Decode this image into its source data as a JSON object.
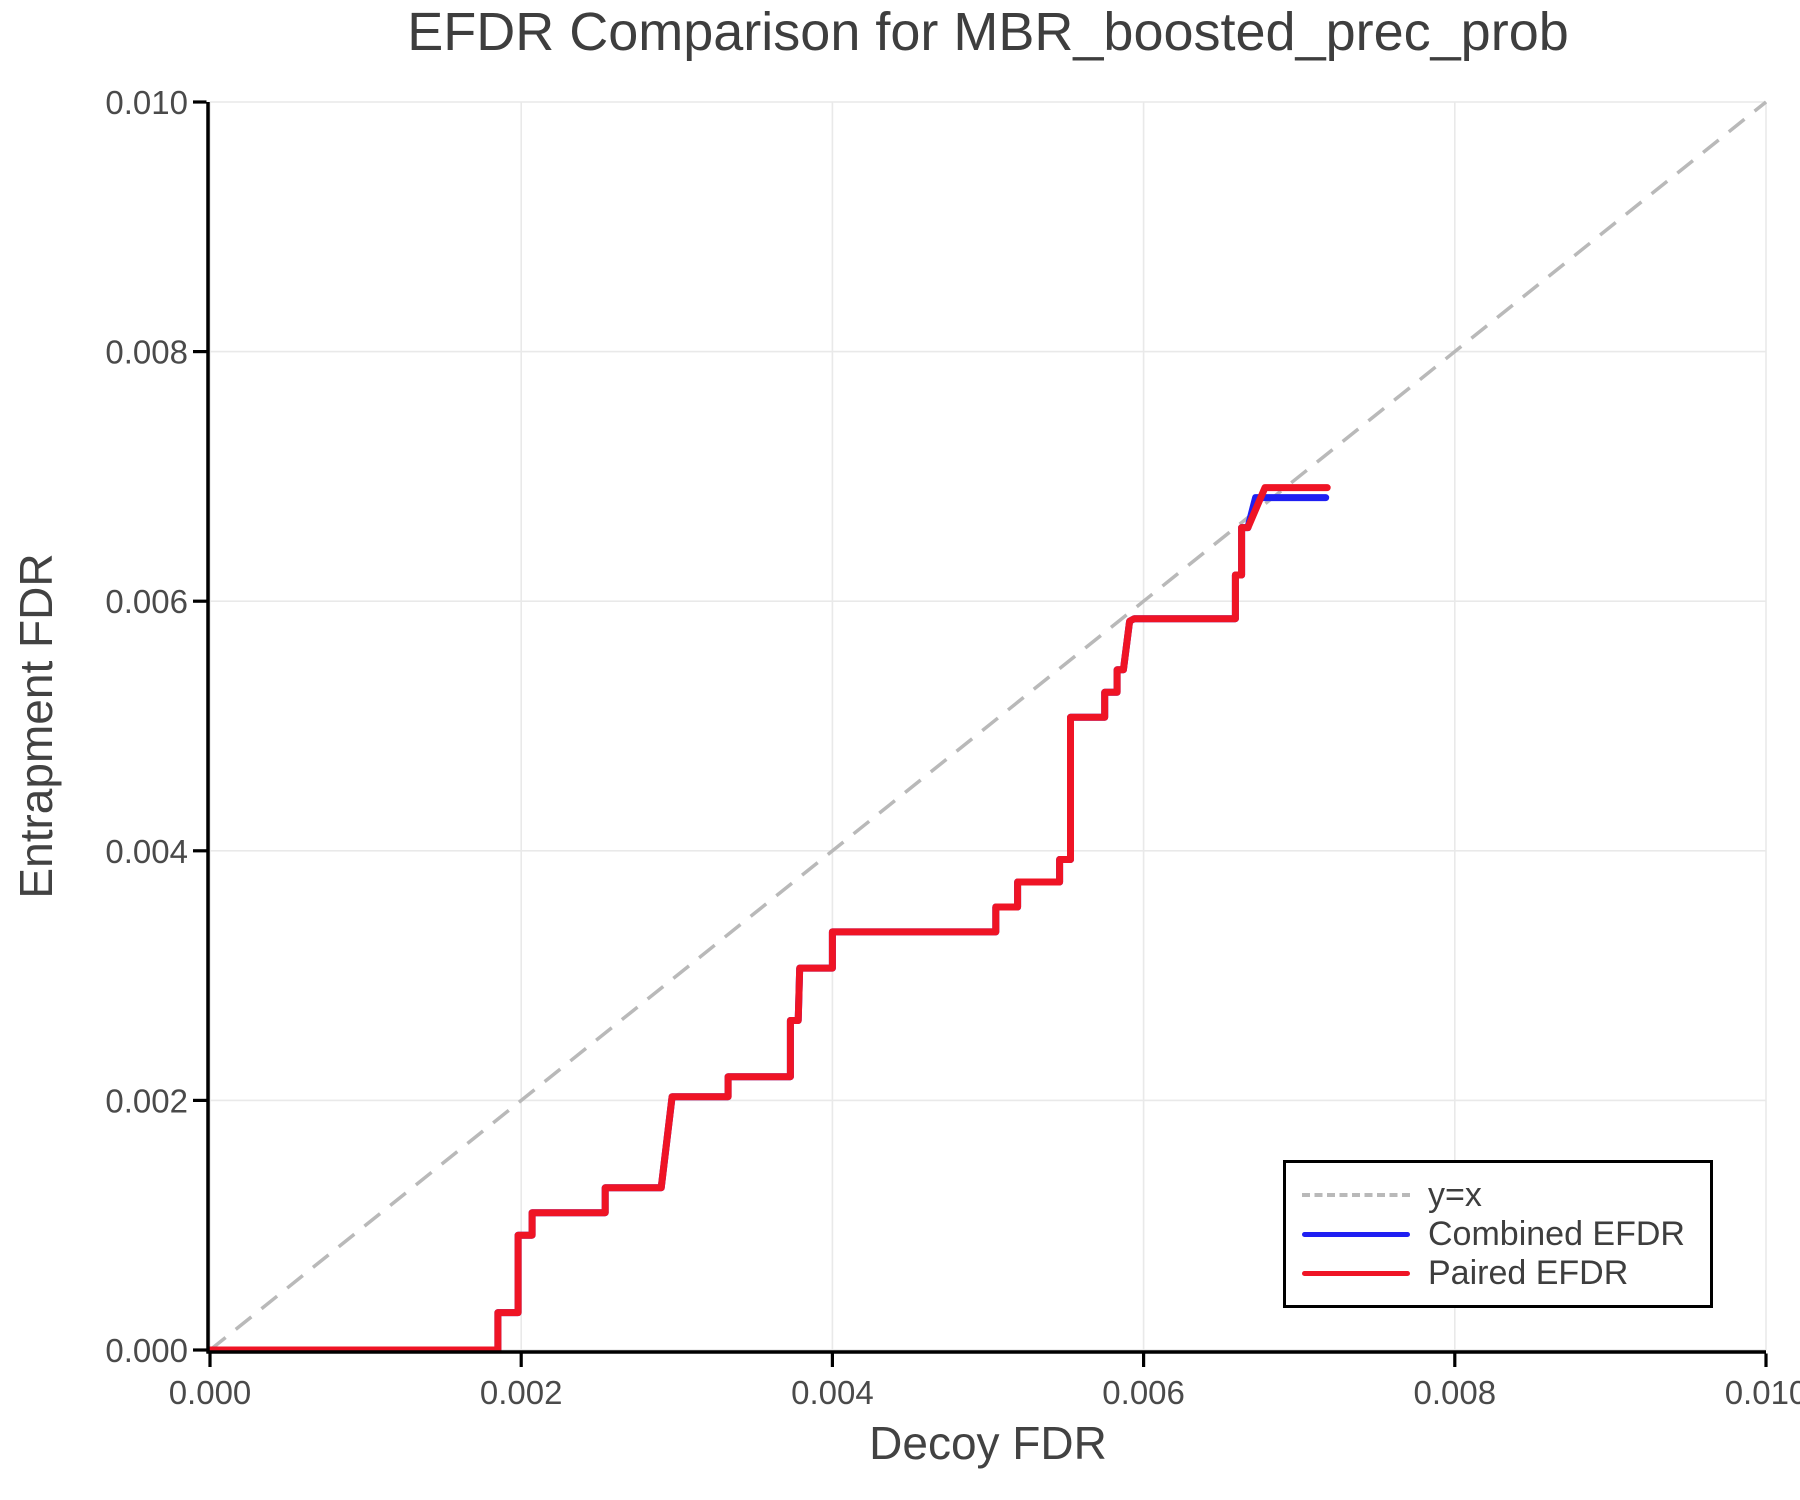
{
  "chart_data": {
    "type": "line",
    "title": "EFDR Comparison for MBR_boosted_prec_prob",
    "xlabel": "Decoy FDR",
    "ylabel": "Entrapment FDR",
    "xlim": [
      0.0,
      0.01
    ],
    "ylim": [
      0.0,
      0.01
    ],
    "grid": true,
    "legend_position": "lower right",
    "xticks": {
      "values": [
        0.0,
        0.002,
        0.004,
        0.006,
        0.008,
        0.01
      ],
      "labels": [
        "0.000",
        "0.002",
        "0.004",
        "0.006",
        "0.008",
        "0.010"
      ]
    },
    "yticks": {
      "values": [
        0.0,
        0.002,
        0.004,
        0.006,
        0.008,
        0.01
      ],
      "labels": [
        "0.000",
        "0.002",
        "0.004",
        "0.006",
        "0.008",
        "0.010"
      ]
    },
    "style": {
      "background": "#ffffff",
      "grid_color": "#e9e9e9",
      "spine_color": "#000000",
      "tick_color": "#000000",
      "title_color": "#3e3e3e",
      "axis_label_color": "#424242",
      "tick_label_color": "#4a4a4a",
      "legend_text_color": "#3e3e3e"
    },
    "series": [
      {
        "name": "y=x",
        "color": "#b9b9b9",
        "style": "dashed",
        "width": 3.5,
        "points": [
          [
            0.0,
            0.0
          ],
          [
            0.01,
            0.01
          ]
        ]
      },
      {
        "name": "Combined EFDR",
        "color": "#1f1ff2",
        "style": "solid",
        "width": 7,
        "points": [
          [
            0.0,
            0.0
          ],
          [
            0.00185,
            0.0
          ],
          [
            0.00185,
            0.0003
          ],
          [
            0.00198,
            0.0003
          ],
          [
            0.00198,
            0.00092
          ],
          [
            0.00207,
            0.00092
          ],
          [
            0.00207,
            0.0011
          ],
          [
            0.00254,
            0.0011
          ],
          [
            0.00254,
            0.0013
          ],
          [
            0.0029,
            0.0013
          ],
          [
            0.00297,
            0.00203
          ],
          [
            0.00333,
            0.00203
          ],
          [
            0.00333,
            0.00219
          ],
          [
            0.00373,
            0.00219
          ],
          [
            0.00373,
            0.00264
          ],
          [
            0.00378,
            0.00264
          ],
          [
            0.00379,
            0.00306
          ],
          [
            0.004,
            0.00306
          ],
          [
            0.004,
            0.00335
          ],
          [
            0.00505,
            0.00335
          ],
          [
            0.00505,
            0.00355
          ],
          [
            0.00519,
            0.00355
          ],
          [
            0.00519,
            0.00375
          ],
          [
            0.00546,
            0.00375
          ],
          [
            0.00546,
            0.00393
          ],
          [
            0.00553,
            0.00393
          ],
          [
            0.00553,
            0.00507
          ],
          [
            0.00575,
            0.00507
          ],
          [
            0.00575,
            0.00527
          ],
          [
            0.00583,
            0.00527
          ],
          [
            0.00583,
            0.00545
          ],
          [
            0.00587,
            0.00545
          ],
          [
            0.00591,
            0.00584
          ],
          [
            0.00594,
            0.00586
          ],
          [
            0.00659,
            0.00586
          ],
          [
            0.00659,
            0.00621
          ],
          [
            0.00663,
            0.00621
          ],
          [
            0.00663,
            0.00659
          ],
          [
            0.00667,
            0.00659
          ],
          [
            0.00672,
            0.00683
          ],
          [
            0.00717,
            0.00683
          ]
        ]
      },
      {
        "name": "Paired EFDR",
        "color": "#ef1425",
        "style": "solid",
        "width": 7,
        "points": [
          [
            0.0,
            0.0
          ],
          [
            0.00185,
            0.0
          ],
          [
            0.00185,
            0.0003
          ],
          [
            0.00198,
            0.0003
          ],
          [
            0.00198,
            0.00092
          ],
          [
            0.00207,
            0.00092
          ],
          [
            0.00207,
            0.0011
          ],
          [
            0.00254,
            0.0011
          ],
          [
            0.00254,
            0.0013
          ],
          [
            0.0029,
            0.0013
          ],
          [
            0.00297,
            0.00203
          ],
          [
            0.00333,
            0.00203
          ],
          [
            0.00333,
            0.00219
          ],
          [
            0.00373,
            0.00219
          ],
          [
            0.00373,
            0.00264
          ],
          [
            0.00378,
            0.00264
          ],
          [
            0.00379,
            0.00306
          ],
          [
            0.004,
            0.00306
          ],
          [
            0.004,
            0.00335
          ],
          [
            0.00505,
            0.00335
          ],
          [
            0.00505,
            0.00355
          ],
          [
            0.00519,
            0.00355
          ],
          [
            0.00519,
            0.00375
          ],
          [
            0.00546,
            0.00375
          ],
          [
            0.00546,
            0.00393
          ],
          [
            0.00553,
            0.00393
          ],
          [
            0.00553,
            0.00507
          ],
          [
            0.00575,
            0.00507
          ],
          [
            0.00575,
            0.00527
          ],
          [
            0.00583,
            0.00527
          ],
          [
            0.00583,
            0.00545
          ],
          [
            0.00587,
            0.00545
          ],
          [
            0.00591,
            0.00584
          ],
          [
            0.00594,
            0.00586
          ],
          [
            0.00659,
            0.00586
          ],
          [
            0.00659,
            0.00621
          ],
          [
            0.00663,
            0.00621
          ],
          [
            0.00663,
            0.00659
          ],
          [
            0.00667,
            0.00659
          ],
          [
            0.00678,
            0.00691
          ],
          [
            0.00718,
            0.00691
          ]
        ]
      }
    ]
  }
}
